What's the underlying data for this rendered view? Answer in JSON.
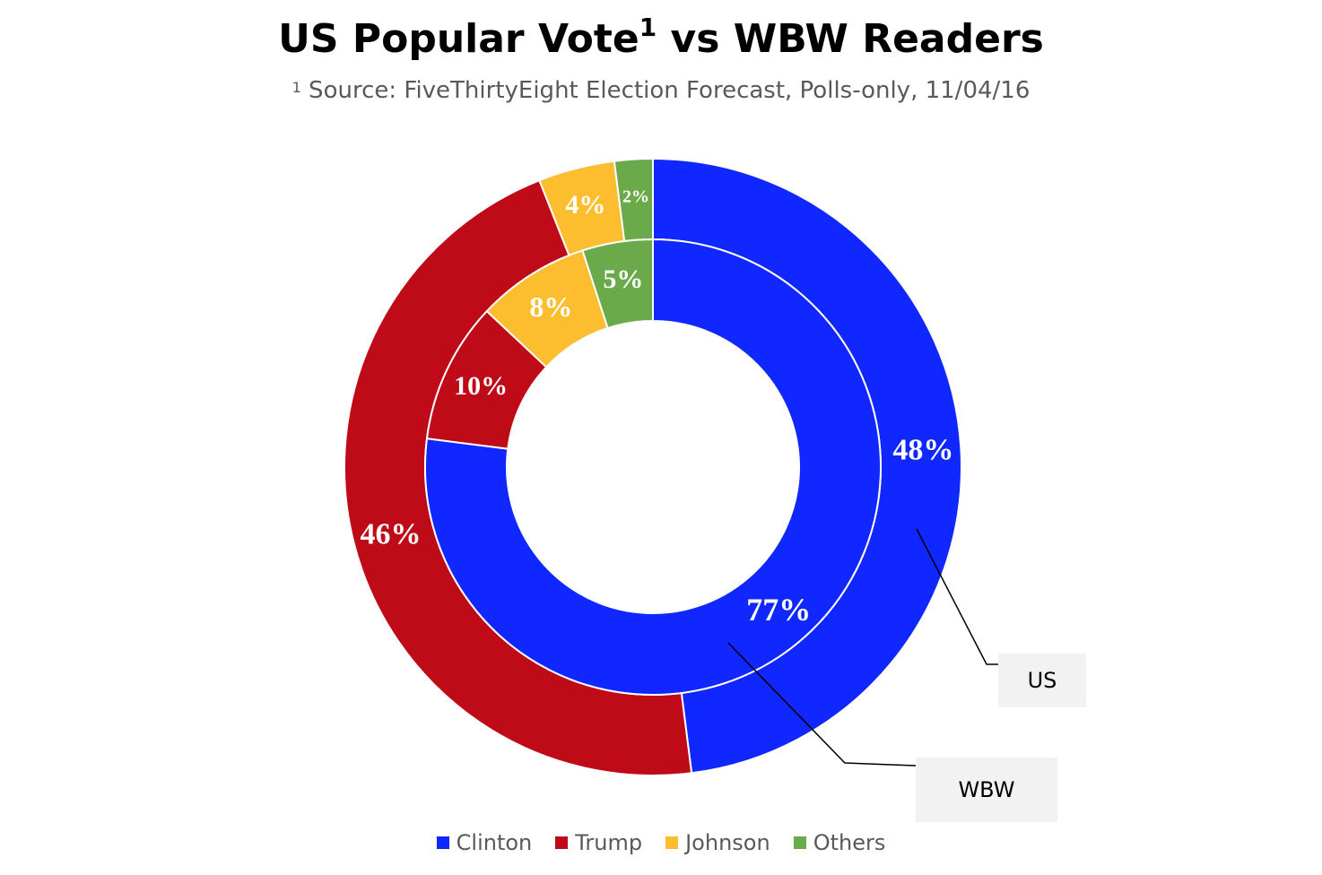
{
  "chart_data": {
    "type": "pie",
    "variant": "doughnut",
    "title": "US Popular Vote",
    "title_superscript": "1",
    "title_suffix": " vs WBW Readers",
    "subtitle_superscript": "1",
    "subtitle": " Source: FiveThirtyEight Election Forecast, Polls-only, 11/04/16",
    "categories": [
      "Clinton",
      "Trump",
      "Johnson",
      "Others"
    ],
    "colors": {
      "Clinton": "#1028ff",
      "Trump": "#bf0a17",
      "Johnson": "#fcbd2f",
      "Others": "#6aaa4a"
    },
    "series": [
      {
        "name": "US",
        "ring": "outer",
        "values": [
          48,
          46,
          4,
          2
        ],
        "labels": [
          "48%",
          "46%",
          "4%",
          "2%"
        ]
      },
      {
        "name": "WBW",
        "ring": "inner",
        "values": [
          77,
          10,
          8,
          5
        ],
        "labels": [
          "77%",
          "10%",
          "8%",
          "5%"
        ]
      }
    ],
    "legend_placement": "bottom"
  }
}
